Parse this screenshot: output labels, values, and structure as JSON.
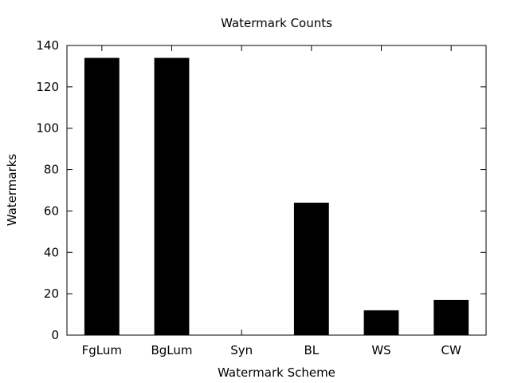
{
  "chart_data": {
    "type": "bar",
    "title": "Watermark Counts",
    "xlabel": "Watermark Scheme",
    "ylabel": "Watermarks",
    "categories": [
      "FgLum",
      "BgLum",
      "Syn",
      "BL",
      "WS",
      "CW"
    ],
    "values": [
      134,
      134,
      0,
      64,
      12,
      17
    ],
    "ylim": [
      0,
      140
    ],
    "yticks": [
      0,
      20,
      40,
      60,
      80,
      100,
      120,
      140
    ],
    "grid": false,
    "legend": "none",
    "bar_color": "#000000",
    "axis_color": "#000000"
  }
}
